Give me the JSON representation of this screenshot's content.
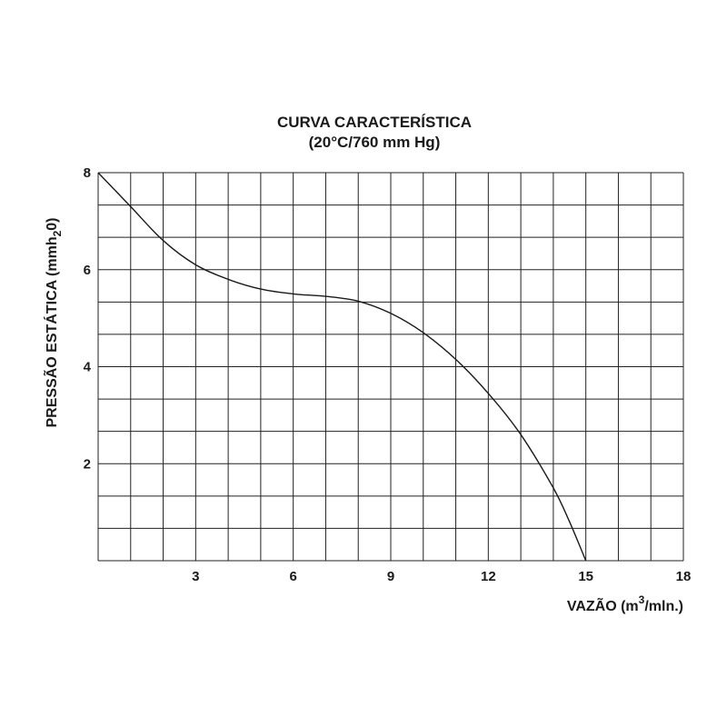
{
  "chart_data": {
    "type": "line",
    "title": "CURVA CARACTERÍSTICA",
    "subtitle": "(20°C/760 mm Hg)",
    "xlabel": "VAZÃO (m³/mln.)",
    "xlabel_base": "VAZÃO (m",
    "xlabel_sup": "3",
    "xlabel_tail": "/mln.)",
    "ylabel": "PRESSÃO ESTÁTICA (mmh₂0)",
    "ylabel_base": "PRESSÃO ESTÁTICA (mmh",
    "ylabel_sub": "2",
    "ylabel_tail": "0)",
    "xlim": [
      0,
      18
    ],
    "ylim": [
      0,
      8
    ],
    "x_ticks": [
      3,
      6,
      9,
      12,
      15,
      18
    ],
    "y_ticks": [
      2,
      4,
      6,
      8
    ],
    "grid": true,
    "x_minor_step": 1,
    "y_minor_step": 0.667,
    "series": [
      {
        "x": [
          0,
          1,
          2,
          3,
          4,
          5,
          6,
          7,
          8,
          9,
          10,
          11,
          12,
          13,
          14,
          14.5,
          15
        ],
        "values": [
          8.0,
          7.3,
          6.6,
          6.1,
          5.8,
          5.6,
          5.5,
          5.45,
          5.35,
          5.1,
          4.7,
          4.15,
          3.45,
          2.6,
          1.5,
          0.8,
          0
        ]
      }
    ]
  }
}
